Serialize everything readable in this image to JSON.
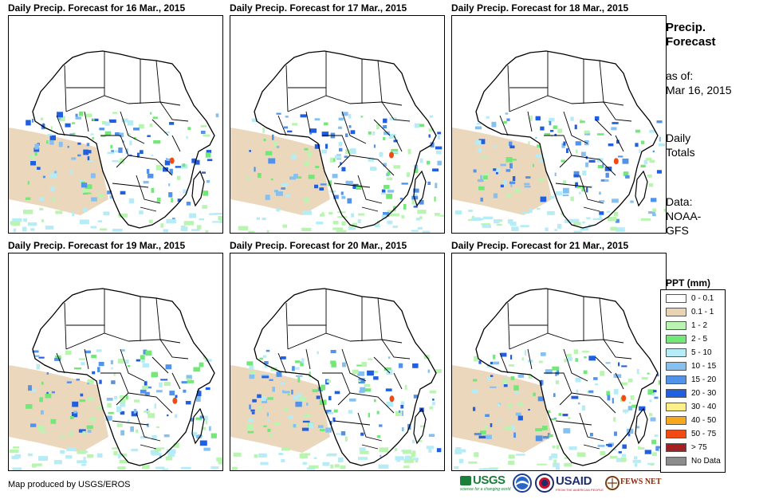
{
  "panels": [
    {
      "title": "Daily Precip. Forecast for 16 Mar., 2015"
    },
    {
      "title": "Daily Precip. Forecast for 17 Mar., 2015"
    },
    {
      "title": "Daily Precip. Forecast for 18 Mar., 2015"
    },
    {
      "title": "Daily Precip. Forecast for 19 Mar., 2015"
    },
    {
      "title": "Daily Precip. Forecast for 20 Mar., 2015"
    },
    {
      "title": "Daily Precip. Forecast for 21 Mar., 2015"
    }
  ],
  "side": {
    "heading_line1": "Precip.",
    "heading_line2": "Forecast",
    "asof_label": "as of:",
    "asof_date": "Mar 16, 2015",
    "totals_line1": "Daily",
    "totals_line2": "Totals",
    "data_label": "Data:",
    "data_source_line1": "NOAA-",
    "data_source_line2": "GFS"
  },
  "legend": {
    "title": "PPT (mm)",
    "items": [
      {
        "label": "0 - 0.1",
        "color": "#ffffff"
      },
      {
        "label": "0.1 - 1",
        "color": "#e9d3b4"
      },
      {
        "label": "1 - 2",
        "color": "#b9f5b0"
      },
      {
        "label": "2 - 5",
        "color": "#73e879"
      },
      {
        "label": "5 - 10",
        "color": "#b5ecf6"
      },
      {
        "label": "10 - 15",
        "color": "#86c0f0"
      },
      {
        "label": "15 - 20",
        "color": "#5292e8"
      },
      {
        "label": "20 - 30",
        "color": "#1f5fe0"
      },
      {
        "label": "30 - 40",
        "color": "#fdf08a"
      },
      {
        "label": "40 - 50",
        "color": "#f7a81c"
      },
      {
        "label": "50 - 75",
        "color": "#f14a13"
      },
      {
        "label": "> 75",
        "color": "#a32020"
      },
      {
        "label": "No Data",
        "color": "#8c8c8c"
      }
    ]
  },
  "credit": "Map produced by USGS/EROS",
  "logos": {
    "usgs": "USGS",
    "usgs_tagline": "science for a changing world",
    "noaa": "NOAA",
    "usaid": "USAID",
    "usaid_tagline": "FROM THE AMERICAN PEOPLE",
    "fews": "FEWS NET"
  }
}
